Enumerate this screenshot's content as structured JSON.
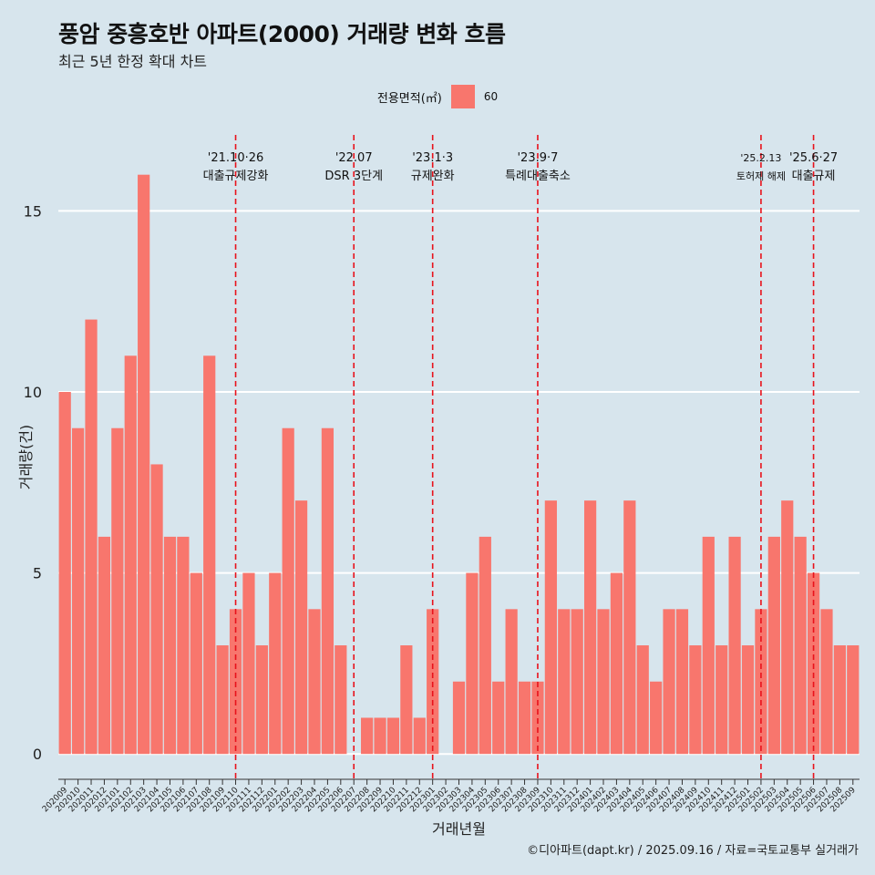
{
  "header": {
    "title": "풍암 중흥호반 아파트(2000) 거래량 변화 흐름",
    "subtitle": "최근 5년 한정 확대 차트"
  },
  "legend": {
    "title": "전용면적(㎡)",
    "items": [
      {
        "label": "60",
        "color": "#f8766d"
      }
    ]
  },
  "caption": "©디아파트(dapt.kr) / 2025.09.16 / 자료=국토교통부 실거래가",
  "chart_data": {
    "type": "bar",
    "xlabel": "거래년월",
    "ylabel": "거래량(건)",
    "ylim": [
      -0.7,
      17.1
    ],
    "yticks": [
      0,
      5,
      10,
      15
    ],
    "grid": true,
    "legend_position": "top",
    "bar_color": "#f8766d",
    "categories": [
      "202009",
      "202010",
      "202011",
      "202012",
      "202101",
      "202102",
      "202103",
      "202104",
      "202105",
      "202106",
      "202107",
      "202108",
      "202109",
      "202110",
      "202111",
      "202112",
      "202201",
      "202202",
      "202203",
      "202204",
      "202205",
      "202206",
      "202207",
      "202208",
      "202209",
      "202210",
      "202211",
      "202212",
      "202301",
      "202302",
      "202303",
      "202304",
      "202305",
      "202306",
      "202307",
      "202308",
      "202309",
      "202310",
      "202311",
      "202312",
      "202401",
      "202402",
      "202403",
      "202404",
      "202405",
      "202406",
      "202407",
      "202408",
      "202409",
      "202410",
      "202411",
      "202412",
      "202501",
      "202502",
      "202503",
      "202504",
      "202505",
      "202506",
      "202507",
      "202508",
      "202509"
    ],
    "series": [
      {
        "values": [
          10,
          9,
          12,
          6,
          9,
          11,
          16,
          8,
          6,
          6,
          5,
          11,
          3,
          4,
          5,
          3,
          5,
          9,
          7,
          4,
          9,
          3,
          0,
          1,
          1,
          1,
          3,
          1,
          4,
          0,
          2,
          5,
          6,
          2,
          4,
          2,
          2,
          7,
          4,
          4,
          7,
          4,
          5,
          7,
          3,
          2,
          4,
          4,
          3,
          6,
          3,
          6,
          3,
          4,
          6,
          7,
          6,
          5,
          4,
          3,
          3
        ]
      }
    ],
    "annotations": [
      {
        "x": "202110",
        "date": "'21.10·26",
        "label": "대출규제강화"
      },
      {
        "x": "202207",
        "date": "'22.07",
        "label": "DSR 3단계"
      },
      {
        "x": "202301",
        "date": "'23.1·3",
        "label": "규제완화"
      },
      {
        "x": "202309",
        "date": "'23.9·7",
        "label": "특례대출축소"
      },
      {
        "x": "202502",
        "date": "'25.2.13",
        "label": "토허제 해제"
      },
      {
        "x": "202506",
        "date": "'25.6·27",
        "label": "대출규제"
      }
    ],
    "annotation_color": "#e8121b"
  }
}
